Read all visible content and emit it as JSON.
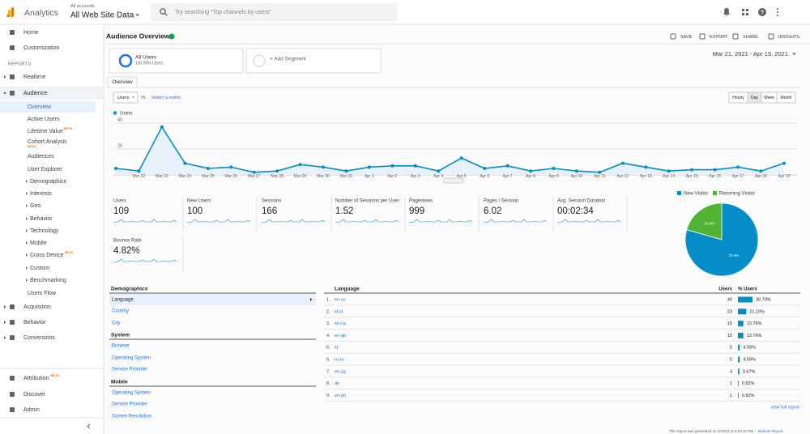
{
  "header": {
    "app": "Analytics",
    "account_label": "All accounts",
    "property": "All Web Site Data",
    "search_placeholder": "Try searching \"Top channels by users\""
  },
  "sidebar": {
    "main_top": [
      {
        "label": "Home"
      },
      {
        "label": "Customization"
      }
    ],
    "reports_label": "REPORTS",
    "realtime": {
      "label": "Realtime"
    },
    "audience": {
      "label": "Audience"
    },
    "audience_items": [
      {
        "label": "Overview"
      },
      {
        "label": "Active Users"
      },
      {
        "label": "Lifetime Value",
        "badge": "BETA"
      },
      {
        "label": "Cohort Analysis",
        "badge": "BETA"
      },
      {
        "label": "Audiences"
      },
      {
        "label": "User Explorer"
      },
      {
        "label": "Demographics",
        "expandable": true
      },
      {
        "label": "Interests",
        "expandable": true
      },
      {
        "label": "Geo",
        "expandable": true
      },
      {
        "label": "Behavior",
        "expandable": true
      },
      {
        "label": "Technology",
        "expandable": true
      },
      {
        "label": "Mobile",
        "expandable": true
      },
      {
        "label": "Cross Device",
        "expandable": true,
        "badge": "BETA"
      },
      {
        "label": "Custom",
        "expandable": true
      },
      {
        "label": "Benchmarking",
        "expandable": true
      },
      {
        "label": "Users Flow"
      }
    ],
    "other_reports": [
      {
        "label": "Acquisition"
      },
      {
        "label": "Behavior"
      },
      {
        "label": "Conversions"
      }
    ],
    "bottom": [
      {
        "label": "Attribution",
        "badge": "BETA"
      },
      {
        "label": "Discover"
      },
      {
        "label": "Admin"
      }
    ]
  },
  "toolbar": {
    "title": "Audience Overview",
    "actions": [
      "SAVE",
      "EXPORT",
      "SHARE",
      "INSIGHTS"
    ]
  },
  "segments": {
    "name": "All Users",
    "detail": "100.00% Users",
    "add": "+ Add Segment"
  },
  "date_range": "Mar 21, 2021 - Apr 19, 2021",
  "tab": "Overview",
  "metric_select": "Users",
  "vs": "vs.",
  "select_metric": "Select a metric",
  "granularity": [
    "Hourly",
    "Day",
    "Week",
    "Month"
  ],
  "users_chart": {
    "type": "line",
    "legend": "Users",
    "color": "#058dc7",
    "categories": [
      null,
      "Mar 22",
      "Mar 23",
      "Mar 24",
      "Mar 25",
      "Mar 26",
      "Mar 27",
      "Mar 28",
      "Mar 29",
      "Mar 30",
      "Mar 31",
      "Apr 1",
      "Apr 2",
      "Apr 3",
      "Apr 4",
      "Apr 5",
      "Apr 6",
      "Apr 7",
      "Apr 8",
      "Apr 9",
      "Apr 10",
      "Apr 11",
      "Apr 12",
      "Apr 13",
      "Apr 14",
      "Apr 15",
      "Apr 16",
      "Apr 17",
      "Apr 18",
      "Apr 19"
    ],
    "values": [
      5,
      3,
      37,
      9,
      5,
      6,
      2,
      3,
      8,
      6,
      3,
      6,
      7,
      7,
      3,
      13,
      5,
      7,
      3,
      5,
      3,
      2,
      9,
      6,
      3,
      4,
      4,
      6,
      3,
      9
    ],
    "ylim": [
      0,
      45
    ],
    "yticks": [
      20,
      40
    ],
    "grid": true
  },
  "metrics": [
    {
      "name": "Users",
      "value": 109
    },
    {
      "name": "New Users",
      "value": 100
    },
    {
      "name": "Sessions",
      "value": 166
    },
    {
      "name": "Number of Sessions per User",
      "value": 1.52
    },
    {
      "name": "Pageviews",
      "value": 999
    },
    {
      "name": "Pages / Session",
      "value": 6.02
    },
    {
      "name": "Avg. Session Duration",
      "value": "00:02:34"
    },
    {
      "name": "Bounce Rate",
      "value": "4.82%"
    }
  ],
  "visitor_pie": {
    "type": "pie",
    "series": [
      {
        "name": "New Visitor",
        "color": "#058dc7",
        "value": 79.4,
        "value_label": "79.4%"
      },
      {
        "name": "Returning Visitor",
        "color": "#50b432",
        "value": 20.6,
        "value_label": "20.6%"
      }
    ]
  },
  "dimension_panel": [
    {
      "heading": "Demographics",
      "items": [
        "Language",
        "Country",
        "City"
      ]
    },
    {
      "heading": "System",
      "items": [
        "Browser",
        "Operating System",
        "Service Provider"
      ]
    },
    {
      "heading": "Mobile",
      "items": [
        "Operating System",
        "Service Provider",
        "Screen Resolution"
      ]
    }
  ],
  "language_table": {
    "headers": [
      "Language",
      "Users",
      "% Users"
    ],
    "rows": [
      {
        "rank": "1.",
        "language": "en-us",
        "users": 40,
        "share": "36.70%"
      },
      {
        "rank": "2.",
        "language": "id-id",
        "users": 23,
        "share": "21.10%"
      },
      {
        "rank": "3.",
        "language": "en-ca",
        "users": 15,
        "share": "13.76%"
      },
      {
        "rank": "4.",
        "language": "en-gb",
        "users": 15,
        "share": "13.76%"
      },
      {
        "rank": "5.",
        "language": "id",
        "users": 5,
        "share": "4.59%"
      },
      {
        "rank": "6.",
        "language": "ru-ru",
        "users": 5,
        "share": "4.59%"
      },
      {
        "rank": "7.",
        "language": "en-sg",
        "users": 4,
        "share": "3.67%"
      },
      {
        "rank": "8.",
        "language": "de",
        "users": 1,
        "share": "0.92%"
      },
      {
        "rank": "9.",
        "language": "en-ph",
        "users": 1,
        "share": "0.92%"
      }
    ],
    "link": "view full report"
  },
  "footer": {
    "note": "This report was generated on 4/20/21 at 6:23:10 PM -",
    "refresh": "Refresh Report"
  }
}
